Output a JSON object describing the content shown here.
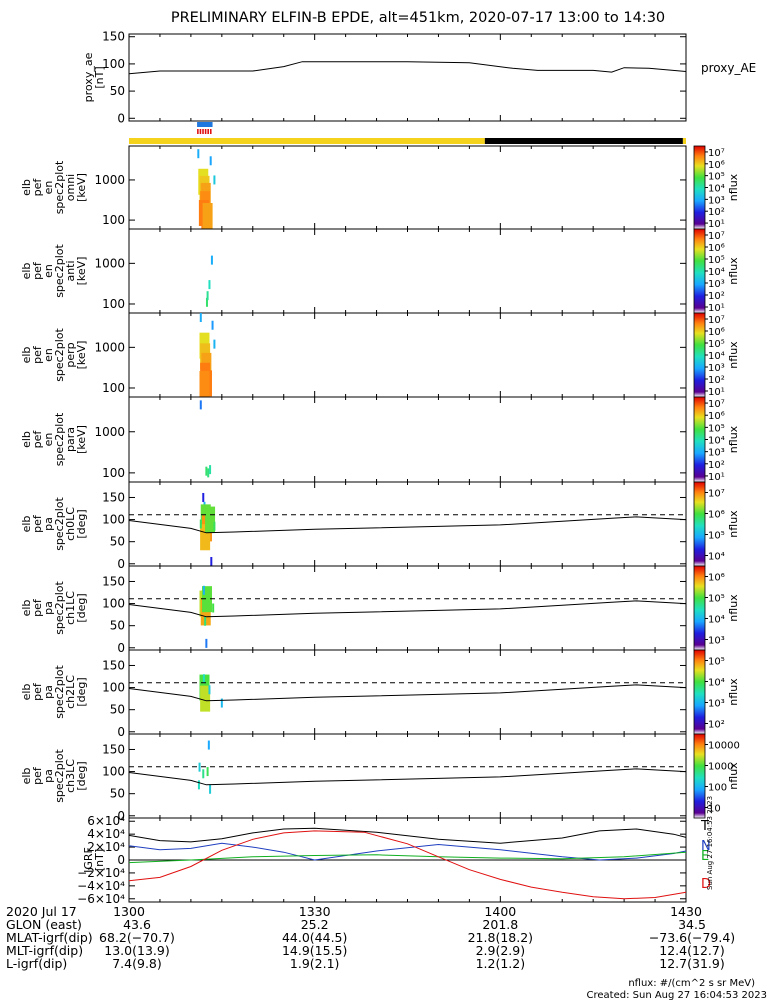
{
  "title": "PRELIMINARY ELFIN-B EPDE, alt=451km, 2020-07-17 13:00 to 14:30",
  "time_range": {
    "start": "13:00",
    "end": "14:30"
  },
  "colorbar_unit": "nflux",
  "chart_data": [
    {
      "id": "proxy_ae",
      "type": "line",
      "ylabel": [
        "proxy_ae",
        "[nT]"
      ],
      "right_label": "proxy_AE",
      "ylim": [
        -5,
        155
      ],
      "yticks": [
        0,
        50,
        100,
        150
      ],
      "x_minutes": [
        0,
        5,
        10,
        15,
        20,
        25,
        28,
        32,
        38,
        45,
        55,
        62,
        66,
        70,
        75,
        78,
        80,
        84,
        90
      ],
      "values": [
        82,
        87,
        87,
        87,
        87,
        95,
        104,
        104,
        104,
        104,
        102,
        92,
        88,
        88,
        88,
        85,
        93,
        92,
        86
      ]
    },
    {
      "id": "state_bars",
      "type": "bar",
      "segments": [
        {
          "row": "top",
          "color": "#1f78e0",
          "start_min": 11.0,
          "end_min": 13.5
        },
        {
          "row": "mid",
          "color": "#e01010",
          "start_min": 11.0,
          "end_min": 13.5,
          "dashed": true
        },
        {
          "row": "bottom",
          "color": "#f5d21c",
          "start_min": 0,
          "end_min": 57.5
        },
        {
          "row": "bottom",
          "color": "#000000",
          "start_min": 57.5,
          "end_min": 89.5
        },
        {
          "row": "bottom",
          "color": "#f5d21c",
          "start_min": 89.5,
          "end_min": 90
        }
      ]
    },
    {
      "id": "en_omni",
      "type": "heatmap",
      "ylabel": [
        "elb",
        "pef",
        "en",
        "spec2plot",
        "omni",
        "[keV]"
      ],
      "yscale": "log",
      "ylim": [
        60,
        7000
      ],
      "yticks": [
        100,
        1000
      ],
      "ytick_labels": [
        "100",
        "1000"
      ],
      "colorbar": {
        "label": "nflux",
        "scale": "log",
        "range": [
          10,
          10000000
        ],
        "tick_labels": [
          "10¹",
          "10²",
          "10³",
          "10⁴",
          "10⁵",
          "10⁶",
          "10⁷"
        ]
      },
      "x_range_min": [
        10.8,
        13.5
      ],
      "peak_energy_keV": 1000,
      "cells": [
        {
          "t": 12.0,
          "e": 900,
          "v": 300000
        },
        {
          "t": 12.2,
          "e": 600,
          "v": 500000
        },
        {
          "t": 12.4,
          "e": 400,
          "v": 1000000
        },
        {
          "t": 12.3,
          "e": 250,
          "v": 1500000
        },
        {
          "t": 12.1,
          "e": 150,
          "v": 2000000
        },
        {
          "t": 12.5,
          "e": 120,
          "v": 2000000
        },
        {
          "t": 12.7,
          "e": 100,
          "v": 1000000
        },
        {
          "t": 11.2,
          "e": 4500,
          "v": 800
        },
        {
          "t": 13.2,
          "e": 3000,
          "v": 600
        },
        {
          "t": 13.8,
          "e": 1000,
          "v": 2000
        }
      ]
    },
    {
      "id": "en_anti",
      "type": "heatmap",
      "ylabel": [
        "elb",
        "pef",
        "en",
        "spec2plot",
        "anti",
        "[keV]"
      ],
      "yscale": "log",
      "ylim": [
        60,
        7000
      ],
      "yticks": [
        100,
        1000
      ],
      "ytick_labels": [
        "100",
        "1000"
      ],
      "colorbar": {
        "label": "nflux",
        "scale": "log",
        "range": [
          10,
          10000000
        ],
        "tick_labels": [
          "10¹",
          "10²",
          "10³",
          "10⁴",
          "10⁵",
          "10⁶",
          "10⁷"
        ]
      },
      "cells": [
        {
          "t": 12.6,
          "e": 110,
          "v": 20000
        },
        {
          "t": 12.7,
          "e": 160,
          "v": 10000
        },
        {
          "t": 13.0,
          "e": 300,
          "v": 5000
        },
        {
          "t": 13.4,
          "e": 1200,
          "v": 800
        }
      ]
    },
    {
      "id": "en_perp",
      "type": "heatmap",
      "ylabel": [
        "elb",
        "pef",
        "en",
        "spec2plot",
        "perp",
        "[keV]"
      ],
      "yscale": "log",
      "ylim": [
        60,
        7000
      ],
      "yticks": [
        100,
        1000
      ],
      "ytick_labels": [
        "100",
        "1000"
      ],
      "colorbar": {
        "label": "nflux",
        "scale": "log",
        "range": [
          10,
          10000000
        ],
        "tick_labels": [
          "10¹",
          "10²",
          "10³",
          "10⁴",
          "10⁵",
          "10⁶",
          "10⁷"
        ]
      },
      "cells": [
        {
          "t": 12.2,
          "e": 1100,
          "v": 300000
        },
        {
          "t": 12.3,
          "e": 600,
          "v": 600000
        },
        {
          "t": 12.5,
          "e": 350,
          "v": 1000000
        },
        {
          "t": 12.3,
          "e": 200,
          "v": 2000000
        },
        {
          "t": 12.6,
          "e": 130,
          "v": 2000000
        },
        {
          "t": 12.2,
          "e": 100,
          "v": 1500000
        },
        {
          "t": 11.6,
          "e": 6500,
          "v": 800
        },
        {
          "t": 13.5,
          "e": 3500,
          "v": 500
        },
        {
          "t": 13.8,
          "e": 1200,
          "v": 1000
        }
      ]
    },
    {
      "id": "en_para",
      "type": "heatmap",
      "ylabel": [
        "elb",
        "pef",
        "en",
        "spec2plot",
        "para",
        "[keV]"
      ],
      "yscale": "log",
      "ylim": [
        60,
        7000
      ],
      "yticks": [
        100,
        1000
      ],
      "ytick_labels": [
        "100",
        "1000"
      ],
      "colorbar": {
        "label": "nflux",
        "scale": "log",
        "range": [
          10,
          10000000
        ],
        "tick_labels": [
          "10¹",
          "10²",
          "10³",
          "10⁴",
          "10⁵",
          "10⁶",
          "10⁷"
        ]
      },
      "cells": [
        {
          "t": 12.5,
          "e": 110,
          "v": 20000
        },
        {
          "t": 12.8,
          "e": 100,
          "v": 15000
        },
        {
          "t": 13.1,
          "e": 120,
          "v": 8000
        },
        {
          "t": 11.6,
          "e": 4500,
          "v": 300
        }
      ]
    },
    {
      "id": "pa_ch0",
      "type": "heatmap",
      "ylabel": [
        "elb",
        "pef",
        "pa",
        "spec2plot",
        "ch0LC",
        "[deg]"
      ],
      "ylim": [
        -5,
        185
      ],
      "yticks": [
        0,
        50,
        100,
        150
      ],
      "colorbar": {
        "label": "nflux",
        "scale": "log",
        "range": [
          3000,
          10000000
        ],
        "tick_labels": [
          "10⁴",
          "10⁵",
          "10⁶",
          "10⁷"
        ]
      },
      "lines": {
        "solid": {
          "x": [
            0,
            10,
            12.5,
            17,
            30,
            60,
            70,
            78,
            82,
            90
          ],
          "y": [
            98,
            80,
            70,
            72,
            78,
            88,
            96,
            103,
            106,
            100
          ]
        },
        "dashed": 111,
        "flat": 88
      },
      "cells": [
        {
          "t": 12.2,
          "e": 130,
          "v": 50000
        },
        {
          "t": 12.4,
          "e": 105,
          "v": 500000
        },
        {
          "t": 12.6,
          "e": 80,
          "v": 3000000
        },
        {
          "t": 12.3,
          "e": 60,
          "v": 2000000
        },
        {
          "t": 11.6,
          "e": 90,
          "v": 300000
        },
        {
          "t": 13.1,
          "e": 100,
          "v": 500000
        },
        {
          "t": 12.0,
          "e": 150,
          "v": 10000
        },
        {
          "t": 13.3,
          "e": -10,
          "v": 10000
        },
        {
          "t": 13.8,
          "e": 85,
          "v": 300000
        }
      ]
    },
    {
      "id": "pa_ch1",
      "type": "heatmap",
      "ylabel": [
        "elb",
        "pef",
        "pa",
        "spec2plot",
        "ch1LC",
        "[deg]"
      ],
      "ylim": [
        -5,
        185
      ],
      "yticks": [
        0,
        50,
        100,
        150
      ],
      "colorbar": {
        "label": "nflux",
        "scale": "log",
        "range": [
          700,
          2000000
        ],
        "tick_labels": [
          "10³",
          "10⁴",
          "10⁵",
          "10⁶"
        ]
      },
      "lines": {
        "solid": {
          "x": [
            0,
            10,
            12.5,
            17,
            30,
            60,
            70,
            78,
            82,
            90
          ],
          "y": [
            98,
            80,
            70,
            72,
            78,
            88,
            96,
            103,
            106,
            100
          ]
        },
        "dashed": 111,
        "flat": 88
      },
      "cells": [
        {
          "t": 12.2,
          "e": 100,
          "v": 200000
        },
        {
          "t": 12.4,
          "e": 80,
          "v": 500000
        },
        {
          "t": 12.6,
          "e": 110,
          "v": 100000
        },
        {
          "t": 12.3,
          "e": 60,
          "v": 50000
        },
        {
          "t": 12.1,
          "e": 130,
          "v": 10000
        },
        {
          "t": 13.6,
          "e": 90,
          "v": 80000
        },
        {
          "t": 12.5,
          "e": 10,
          "v": 5000
        }
      ]
    },
    {
      "id": "pa_ch2",
      "type": "heatmap",
      "ylabel": [
        "elb",
        "pef",
        "pa",
        "spec2plot",
        "ch2LC",
        "[deg]"
      ],
      "ylim": [
        -5,
        185
      ],
      "yticks": [
        0,
        50,
        100,
        150
      ],
      "colorbar": {
        "label": "nflux",
        "scale": "log",
        "range": [
          100,
          600000
        ],
        "tick_labels": [
          "10²",
          "10³",
          "10⁴",
          "10⁵"
        ]
      },
      "lines": {
        "solid": {
          "x": [
            0,
            10,
            12.5,
            17,
            30,
            60,
            70,
            78,
            82,
            90
          ],
          "y": [
            98,
            80,
            70,
            72,
            78,
            88,
            96,
            103,
            106,
            100
          ]
        },
        "dashed": 111,
        "flat": 88
      },
      "cells": [
        {
          "t": 12.2,
          "e": 100,
          "v": 20000
        },
        {
          "t": 12.3,
          "e": 75,
          "v": 50000
        },
        {
          "t": 12.1,
          "e": 120,
          "v": 5000
        },
        {
          "t": 13.0,
          "e": 95,
          "v": 3000
        },
        {
          "t": 15.0,
          "e": 65,
          "v": 2000
        }
      ]
    },
    {
      "id": "pa_ch3",
      "type": "heatmap",
      "ylabel": [
        "elb",
        "pef",
        "pa",
        "spec2plot",
        "ch3LC",
        "[deg]"
      ],
      "ylim": [
        -5,
        185
      ],
      "yticks": [
        0,
        50,
        100,
        150
      ],
      "colorbar": {
        "label": "nflux",
        "scale": "log",
        "range": [
          10,
          20000
        ],
        "tick_labels": [
          "10",
          "100",
          "1000",
          "10000"
        ]
      },
      "lines": {
        "solid": {
          "x": [
            0,
            10,
            12.5,
            17,
            30,
            60,
            70,
            78,
            82,
            90
          ],
          "y": [
            98,
            80,
            70,
            72,
            78,
            88,
            96,
            103,
            106,
            100
          ]
        },
        "dashed": 111,
        "flat": 88
      },
      "cells": [
        {
          "t": 11.4,
          "e": 110,
          "v": 200
        },
        {
          "t": 11.3,
          "e": 70,
          "v": 300
        },
        {
          "t": 12.0,
          "e": 95,
          "v": 500
        },
        {
          "t": 12.7,
          "e": 100,
          "v": 800
        },
        {
          "t": 13.1,
          "e": 60,
          "v": 200
        },
        {
          "t": 12.9,
          "e": 160,
          "v": 100
        }
      ]
    },
    {
      "id": "igrf",
      "type": "line",
      "ylabel": [
        "IGRF",
        "[nT]"
      ],
      "ylim": [
        -65000,
        65000
      ],
      "yticks": [
        -60000,
        -40000,
        -20000,
        0,
        20000,
        40000,
        60000
      ],
      "ytick_labels": [
        "−6×10⁴",
        "−4×10⁴",
        "−2×10⁴",
        "0",
        "2×10⁴",
        "4×10⁴",
        "6×10⁴"
      ],
      "series": [
        {
          "name": "T",
          "color": "#000000",
          "x": [
            0,
            5,
            10,
            15,
            20,
            25,
            30,
            40,
            50,
            60,
            70,
            76,
            82,
            88,
            90
          ],
          "values": [
            38000,
            30000,
            28000,
            33000,
            42000,
            48000,
            49000,
            43000,
            32000,
            26000,
            34000,
            45000,
            48000,
            40000,
            35000
          ]
        },
        {
          "name": "N",
          "color": "#1f3fc0",
          "x": [
            0,
            5,
            10,
            15,
            20,
            25,
            30,
            40,
            50,
            60,
            70,
            76,
            82,
            88,
            90
          ],
          "values": [
            22000,
            16000,
            18000,
            26000,
            20000,
            12000,
            0,
            14000,
            24000,
            16000,
            5000,
            0,
            3000,
            10000,
            14000
          ]
        },
        {
          "name": "E",
          "color": "#10b020",
          "x": [
            0,
            10,
            20,
            30,
            40,
            50,
            60,
            70,
            80,
            90
          ],
          "values": [
            -4000,
            0,
            5000,
            7000,
            8000,
            5000,
            3000,
            2000,
            5000,
            12000
          ]
        },
        {
          "name": "D",
          "color": "#e01010",
          "x": [
            0,
            5,
            10,
            15,
            20,
            25,
            30,
            38,
            45,
            50,
            55,
            60,
            65,
            70,
            75,
            80,
            85,
            90
          ],
          "values": [
            -32000,
            -27000,
            -10000,
            15000,
            32000,
            42000,
            45000,
            43000,
            25000,
            5000,
            -15000,
            -30000,
            -42000,
            -50000,
            -57000,
            -60000,
            -58000,
            -50000
          ]
        }
      ]
    }
  ],
  "xaxis": {
    "tick_minutes": [
      0,
      30,
      60,
      90
    ],
    "labels": [
      "1300",
      "1330",
      "1400",
      "1430"
    ],
    "rows": [
      {
        "name": "2020 Jul 17",
        "values": [
          "",
          "",
          "",
          ""
        ]
      },
      {
        "name": "GLON (east)",
        "values": [
          "43.6",
          "25.2",
          "201.8",
          "34.5"
        ]
      },
      {
        "name": "MLAT-igrf(dip)",
        "values": [
          "68.2(−70.7)",
          "44.0(44.5)",
          "21.8(18.2)",
          "−73.6(−79.4)"
        ]
      },
      {
        "name": "MLT-igrf(dip)",
        "values": [
          "13.0(13.9)",
          "14.9(15.5)",
          "2.9(2.9)",
          "12.4(12.7)"
        ]
      },
      {
        "name": "L-igrf(dip)",
        "values": [
          "7.4(9.8)",
          "1.9(2.1)",
          "1.2(1.2)",
          "12.7(31.9)"
        ]
      }
    ]
  },
  "footer": {
    "units": "nflux: #/(cm^2 s sr MeV)",
    "created": "Created: Sun Aug 27 16:04:53 2023",
    "side_stamp": "Sun Aug 27 16:04:53 2023"
  }
}
